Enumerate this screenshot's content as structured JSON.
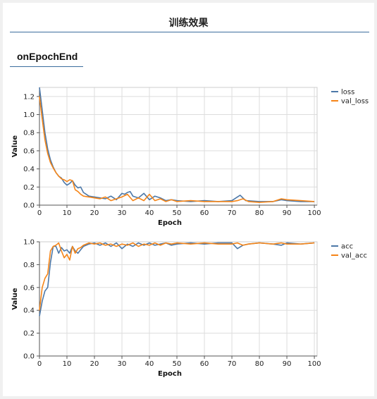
{
  "page": {
    "title": "训练效果",
    "tab_label": "onEpochEnd"
  },
  "colors": {
    "series1": "#4c78a8",
    "series2": "#f58518",
    "grid": "#dddddd",
    "accent": "#3c6e9e"
  },
  "chart_data": [
    {
      "type": "line",
      "xlabel": "Epoch",
      "ylabel": "Value",
      "xlim": [
        0,
        101
      ],
      "ylim": [
        0,
        1.3
      ],
      "xticks": [
        0,
        10,
        20,
        30,
        40,
        50,
        60,
        70,
        80,
        90,
        100
      ],
      "yticks": [
        0,
        0.2,
        0.4,
        0.6,
        0.8,
        1.0,
        1.2
      ],
      "ytick_labels": [
        "0.0",
        "0.2",
        "0.4",
        "0.6",
        "0.8",
        "1.0",
        "1.2"
      ],
      "legend": "top-right",
      "grid": true,
      "series": [
        {
          "name": "loss",
          "color": "#4c78a8",
          "x": [
            0,
            1,
            2,
            3,
            4,
            5,
            6,
            7,
            8,
            9,
            10,
            11,
            12,
            13,
            14,
            15,
            16,
            17,
            18,
            20,
            22,
            24,
            26,
            28,
            30,
            31,
            32,
            33,
            34,
            36,
            38,
            40,
            42,
            44,
            46,
            48,
            50,
            55,
            60,
            65,
            70,
            72,
            73,
            75,
            80,
            85,
            88,
            90,
            95,
            100
          ],
          "y": [
            1.3,
            1.05,
            0.8,
            0.62,
            0.5,
            0.42,
            0.36,
            0.32,
            0.3,
            0.25,
            0.22,
            0.24,
            0.27,
            0.22,
            0.19,
            0.2,
            0.14,
            0.12,
            0.1,
            0.09,
            0.08,
            0.07,
            0.1,
            0.06,
            0.13,
            0.12,
            0.14,
            0.15,
            0.1,
            0.08,
            0.13,
            0.06,
            0.1,
            0.08,
            0.05,
            0.06,
            0.05,
            0.04,
            0.05,
            0.04,
            0.05,
            0.09,
            0.11,
            0.05,
            0.04,
            0.04,
            0.06,
            0.05,
            0.04,
            0.04
          ]
        },
        {
          "name": "val_loss",
          "color": "#f58518",
          "x": [
            0,
            1,
            2,
            3,
            4,
            5,
            6,
            7,
            8,
            9,
            10,
            11,
            12,
            13,
            14,
            15,
            16,
            18,
            20,
            22,
            24,
            26,
            28,
            30,
            32,
            34,
            36,
            38,
            40,
            42,
            44,
            46,
            48,
            50,
            55,
            60,
            65,
            70,
            72,
            74,
            76,
            80,
            85,
            88,
            90,
            95,
            100
          ],
          "y": [
            1.2,
            0.95,
            0.72,
            0.57,
            0.47,
            0.41,
            0.36,
            0.32,
            0.29,
            0.28,
            0.26,
            0.28,
            0.27,
            0.17,
            0.15,
            0.12,
            0.1,
            0.09,
            0.08,
            0.07,
            0.09,
            0.05,
            0.07,
            0.09,
            0.12,
            0.05,
            0.08,
            0.05,
            0.12,
            0.05,
            0.07,
            0.04,
            0.06,
            0.04,
            0.05,
            0.04,
            0.04,
            0.04,
            0.05,
            0.07,
            0.04,
            0.03,
            0.04,
            0.07,
            0.06,
            0.05,
            0.04
          ]
        }
      ]
    },
    {
      "type": "line",
      "xlabel": "Epoch",
      "ylabel": "Value",
      "xlim": [
        0,
        101
      ],
      "ylim": [
        0,
        1.0
      ],
      "xticks": [
        0,
        10,
        20,
        30,
        40,
        50,
        60,
        70,
        80,
        90,
        100
      ],
      "yticks": [
        0,
        0.2,
        0.4,
        0.6,
        0.8,
        1.0
      ],
      "ytick_labels": [
        "0.0",
        "0.2",
        "0.4",
        "0.6",
        "0.8",
        "1.0"
      ],
      "legend": "top-right",
      "grid": true,
      "series": [
        {
          "name": "acc",
          "color": "#4c78a8",
          "x": [
            0,
            1,
            2,
            3,
            4,
            5,
            6,
            7,
            8,
            9,
            10,
            11,
            12,
            13,
            14,
            15,
            16,
            18,
            20,
            22,
            24,
            26,
            28,
            30,
            32,
            34,
            36,
            38,
            40,
            42,
            44,
            46,
            48,
            50,
            55,
            60,
            65,
            70,
            72,
            74,
            76,
            80,
            85,
            88,
            90,
            95,
            100
          ],
          "y": [
            0.35,
            0.48,
            0.57,
            0.6,
            0.82,
            0.96,
            0.96,
            0.9,
            0.95,
            0.92,
            0.93,
            0.9,
            0.96,
            0.92,
            0.9,
            0.93,
            0.96,
            0.98,
            0.99,
            0.97,
            0.99,
            0.96,
            0.99,
            0.94,
            0.98,
            0.96,
            0.99,
            0.97,
            0.99,
            0.97,
            0.98,
            0.99,
            0.97,
            0.98,
            0.99,
            0.98,
            0.99,
            0.99,
            0.94,
            0.97,
            0.98,
            0.99,
            0.98,
            0.97,
            0.99,
            0.98,
            0.99
          ]
        },
        {
          "name": "val_acc",
          "color": "#f58518",
          "x": [
            0,
            1,
            2,
            3,
            4,
            5,
            6,
            7,
            8,
            9,
            10,
            11,
            12,
            13,
            14,
            15,
            16,
            18,
            20,
            22,
            24,
            26,
            28,
            30,
            32,
            34,
            36,
            38,
            40,
            42,
            44,
            46,
            48,
            50,
            55,
            60,
            65,
            70,
            72,
            74,
            76,
            80,
            85,
            88,
            90,
            95,
            100
          ],
          "y": [
            0.4,
            0.6,
            0.68,
            0.72,
            0.92,
            0.96,
            0.97,
            0.99,
            0.92,
            0.86,
            0.89,
            0.84,
            0.96,
            0.9,
            0.94,
            0.95,
            0.97,
            0.99,
            0.98,
            0.99,
            0.97,
            0.98,
            0.96,
            0.98,
            0.97,
            0.99,
            0.96,
            0.98,
            0.97,
            0.99,
            0.97,
            0.99,
            0.98,
            0.99,
            0.98,
            0.99,
            0.98,
            0.98,
            0.99,
            0.97,
            0.98,
            0.99,
            0.98,
            0.99,
            0.98,
            0.98,
            0.99
          ]
        }
      ]
    }
  ]
}
